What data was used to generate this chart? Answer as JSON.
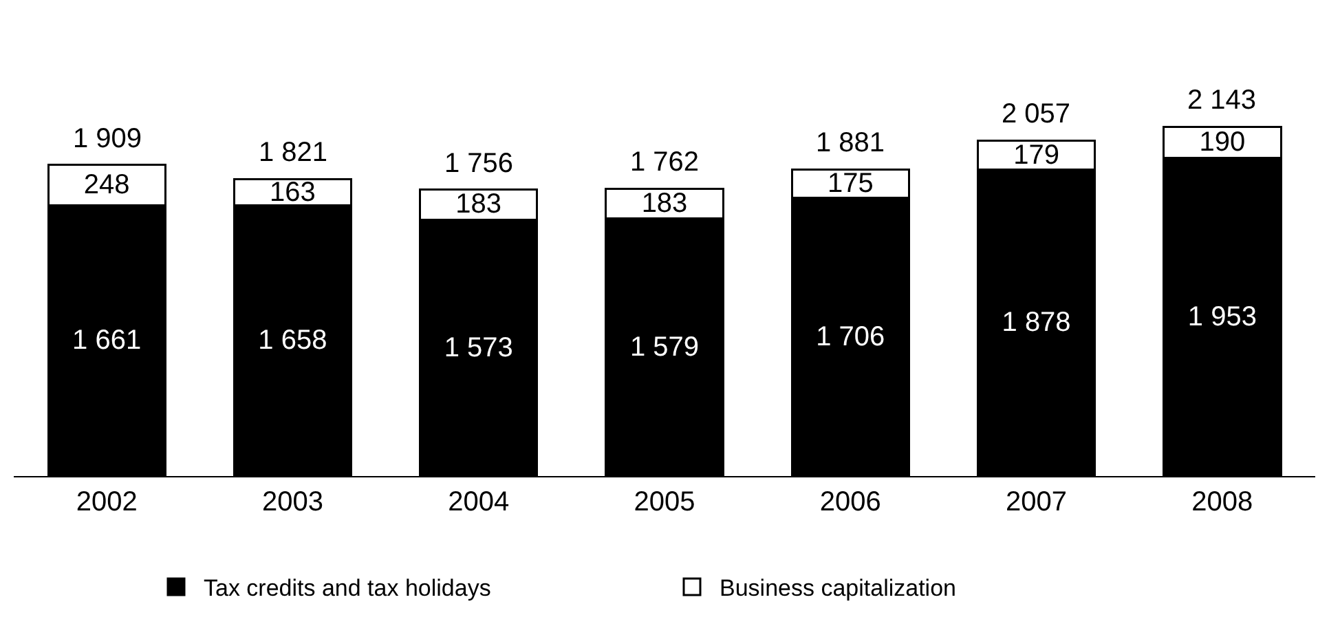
{
  "chart_data": {
    "type": "bar",
    "stacked": true,
    "categories": [
      "2002",
      "2003",
      "2004",
      "2005",
      "2006",
      "2007",
      "2008"
    ],
    "series": [
      {
        "name": "Tax credits and tax holidays",
        "color": "#000000",
        "values": [
          1661,
          1658,
          1573,
          1579,
          1706,
          1878,
          1953
        ],
        "value_labels": [
          "1 661",
          "1 658",
          "1 573",
          "1 579",
          "1 706",
          "1 878",
          "1 953"
        ]
      },
      {
        "name": "Business capitalization",
        "color": "#ffffff",
        "values": [
          248,
          163,
          183,
          183,
          175,
          179,
          190
        ],
        "value_labels": [
          "248",
          "163",
          "183",
          "183",
          "175",
          "179",
          "190"
        ]
      }
    ],
    "totals": [
      "1 909",
      "1 821",
      "1 756",
      "1 762",
      "1 881",
      "2 057",
      "2 143"
    ],
    "tick_labels": "x",
    "legend": "bottom"
  }
}
